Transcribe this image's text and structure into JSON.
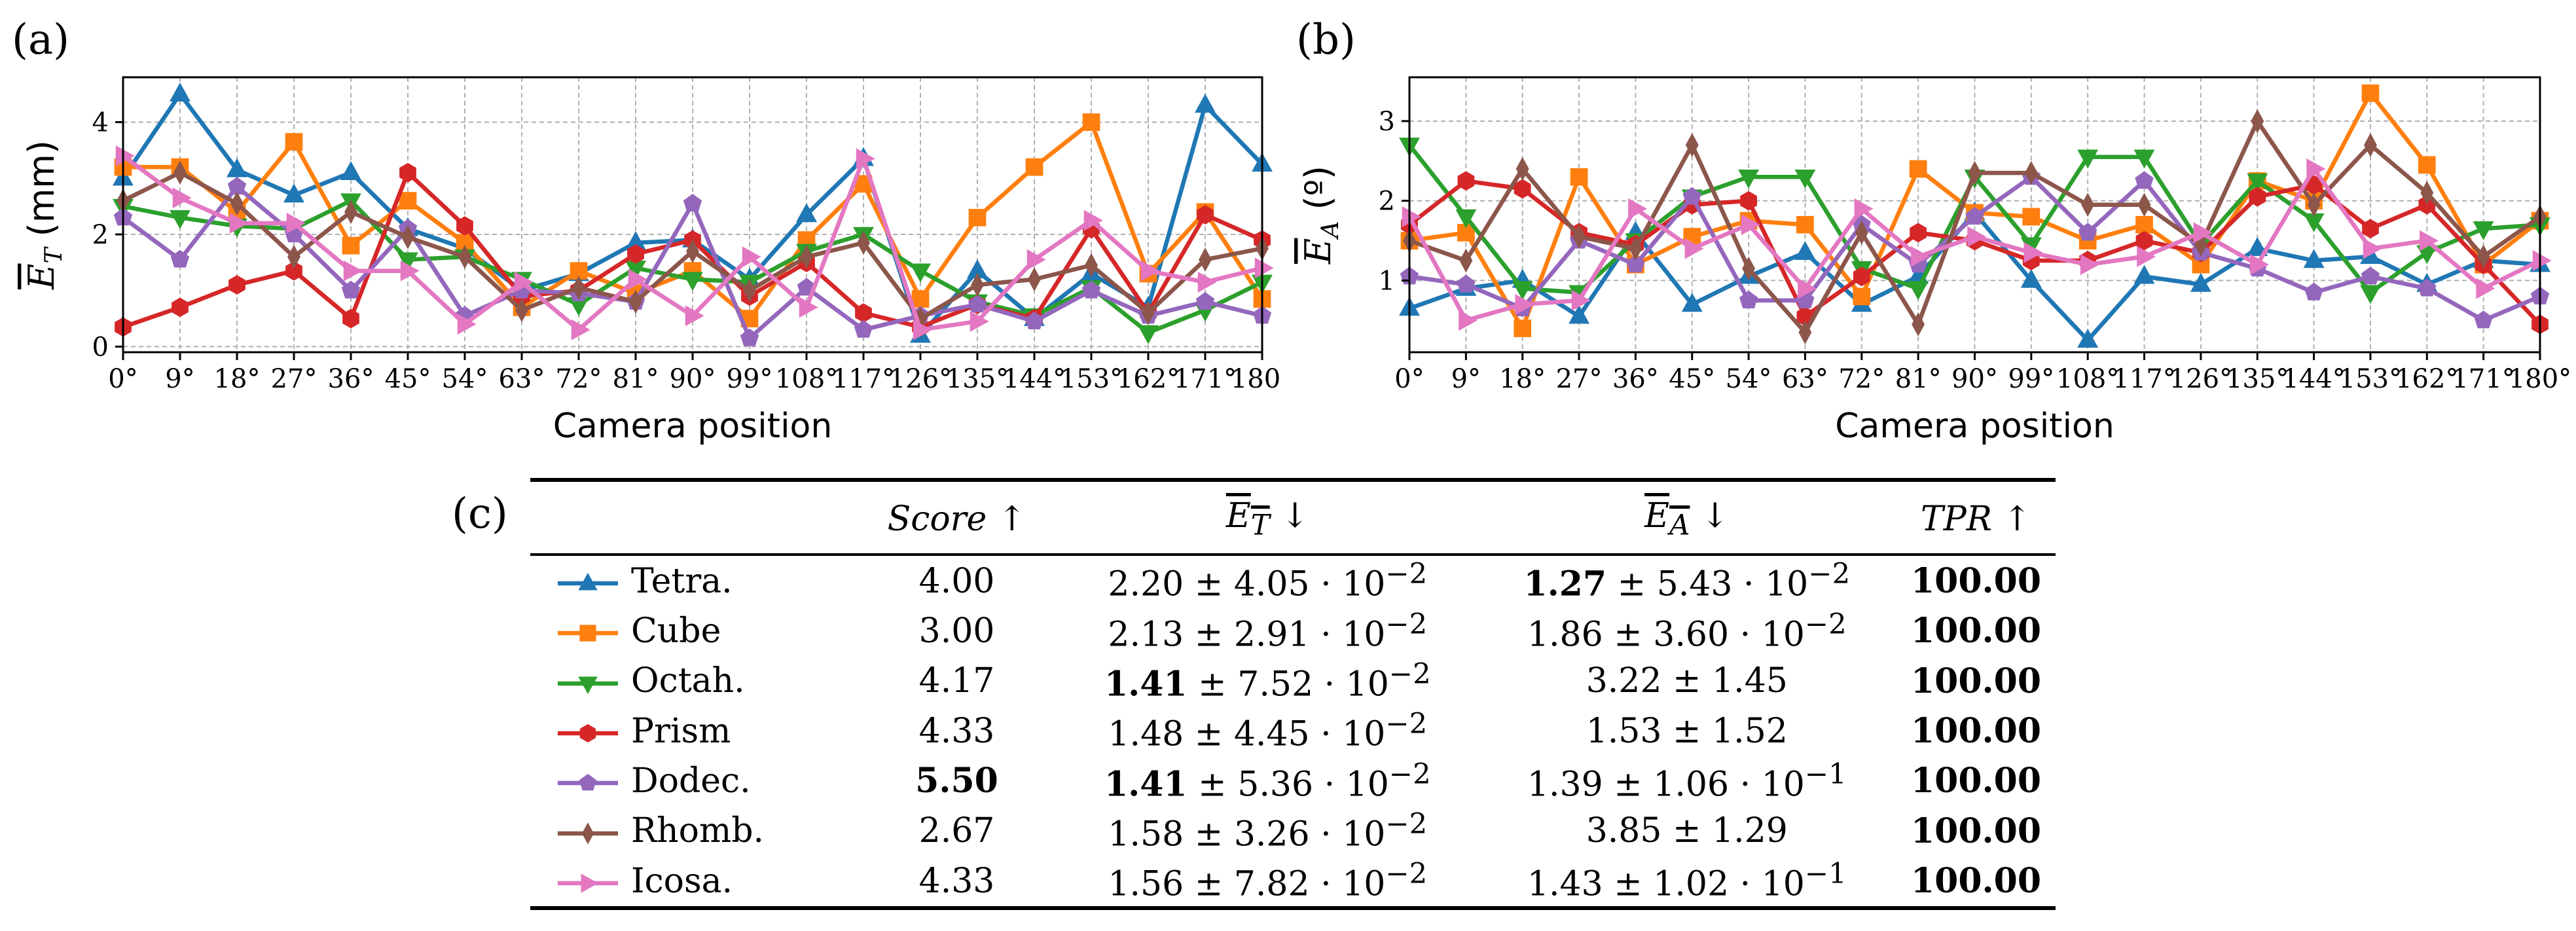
{
  "panel_labels": {
    "a": "(a)",
    "b": "(b)",
    "c": "(c)"
  },
  "chart_data": [
    {
      "type": "line",
      "id": "a",
      "xlabel": "Camera position",
      "ylabel": "E_T (mm)",
      "ylabel_main": "E",
      "ylabel_sub": "T",
      "ylabel_unit": " (mm)",
      "ylim": [
        -0.1,
        4.8
      ],
      "yticks": [
        "0",
        "2",
        "4"
      ],
      "ytick_values": [
        0,
        2,
        4
      ],
      "xlim": [
        0,
        180
      ],
      "xticks": [
        "0°",
        "9°",
        "18°",
        "27°",
        "36°",
        "45°",
        "54°",
        "63°",
        "72°",
        "81°",
        "90°",
        "99°",
        "108°",
        "117°",
        "126°",
        "135°",
        "144°",
        "153°",
        "162°",
        "171°",
        "180°"
      ],
      "x": [
        0,
        9,
        18,
        27,
        36,
        45,
        54,
        63,
        72,
        81,
        90,
        99,
        108,
        117,
        126,
        135,
        144,
        153,
        162,
        171,
        180
      ],
      "grid": true,
      "series": [
        {
          "name": "Tetra.",
          "color": "#1f77b4",
          "marker": "triangle-up",
          "values": [
            3.0,
            4.5,
            3.15,
            2.7,
            3.1,
            2.1,
            1.75,
            1.0,
            1.3,
            1.85,
            1.9,
            1.2,
            2.35,
            3.35,
            0.2,
            1.35,
            0.5,
            1.3,
            0.7,
            4.3,
            3.25
          ]
        },
        {
          "name": "Cube",
          "color": "#ff7f0e",
          "marker": "square",
          "values": [
            3.2,
            3.2,
            2.4,
            3.65,
            1.8,
            2.6,
            1.85,
            0.7,
            1.35,
            0.95,
            1.35,
            0.5,
            1.9,
            2.9,
            0.85,
            2.3,
            3.2,
            4.0,
            1.3,
            2.4,
            0.85
          ]
        },
        {
          "name": "Octah.",
          "color": "#2ca02c",
          "marker": "triangle-down",
          "values": [
            2.5,
            2.3,
            2.15,
            2.1,
            2.6,
            1.55,
            1.6,
            1.2,
            0.75,
            1.4,
            1.2,
            1.15,
            1.7,
            2.0,
            1.35,
            0.8,
            0.55,
            1.05,
            0.25,
            0.65,
            1.15
          ]
        },
        {
          "name": "Prism",
          "color": "#d62728",
          "marker": "hexagon",
          "values": [
            0.35,
            0.7,
            1.1,
            1.35,
            0.5,
            3.1,
            2.15,
            0.9,
            1.0,
            1.65,
            1.9,
            0.9,
            1.5,
            0.6,
            0.35,
            0.75,
            0.5,
            2.1,
            0.6,
            2.35,
            1.9
          ]
        },
        {
          "name": "Dodec.",
          "color": "#9467bd",
          "marker": "pentagon",
          "values": [
            2.3,
            1.55,
            2.85,
            2.0,
            1.0,
            2.1,
            0.55,
            1.0,
            0.95,
            0.8,
            2.55,
            0.15,
            1.05,
            0.3,
            0.55,
            0.75,
            0.45,
            1.0,
            0.55,
            0.8,
            0.55
          ]
        },
        {
          "name": "Rhomb.",
          "color": "#8c564b",
          "marker": "thin-diamond",
          "values": [
            2.6,
            3.1,
            2.55,
            1.6,
            2.4,
            1.95,
            1.6,
            0.65,
            1.05,
            0.8,
            1.7,
            1.0,
            1.6,
            1.85,
            0.5,
            1.1,
            1.2,
            1.45,
            0.6,
            1.55,
            1.75
          ]
        },
        {
          "name": "Icosa.",
          "color": "#e377c2",
          "marker": "triangle-right",
          "values": [
            3.4,
            2.65,
            2.2,
            2.2,
            1.35,
            1.35,
            0.4,
            1.15,
            0.3,
            1.2,
            0.55,
            1.6,
            0.7,
            3.35,
            0.3,
            0.45,
            1.55,
            2.25,
            1.35,
            1.15,
            1.4
          ]
        }
      ]
    },
    {
      "type": "line",
      "id": "b",
      "xlabel": "Camera position",
      "ylabel": "E_A (º)",
      "ylabel_main": "E",
      "ylabel_sub": "A",
      "ylabel_unit": " (º)",
      "ylim": [
        0.1,
        3.55
      ],
      "yticks": [
        "1",
        "2",
        "3"
      ],
      "ytick_values": [
        1,
        2,
        3
      ],
      "xlim": [
        0,
        180
      ],
      "xticks": [
        "0°",
        "9°",
        "18°",
        "27°",
        "36°",
        "45°",
        "54°",
        "63°",
        "72°",
        "81°",
        "90°",
        "99°",
        "108°",
        "117°",
        "126°",
        "135°",
        "144°",
        "153°",
        "162°",
        "171°",
        "180°"
      ],
      "x": [
        0,
        9,
        18,
        27,
        36,
        45,
        54,
        63,
        72,
        81,
        90,
        99,
        108,
        117,
        126,
        135,
        144,
        153,
        162,
        171,
        180
      ],
      "grid": true,
      "series": [
        {
          "name": "Tetra.",
          "color": "#1f77b4",
          "marker": "triangle-up",
          "values": [
            0.65,
            0.9,
            1.0,
            0.55,
            1.6,
            0.7,
            1.05,
            1.35,
            0.7,
            1.05,
            1.85,
            1.0,
            0.25,
            1.05,
            0.95,
            1.4,
            1.25,
            1.3,
            0.95,
            1.25,
            1.2
          ]
        },
        {
          "name": "Cube",
          "color": "#ff7f0e",
          "marker": "square",
          "values": [
            1.5,
            1.6,
            0.4,
            2.3,
            1.2,
            1.55,
            1.75,
            1.7,
            0.8,
            2.4,
            1.85,
            1.8,
            1.5,
            1.7,
            1.2,
            2.25,
            2.0,
            3.35,
            2.45,
            1.2,
            1.75
          ]
        },
        {
          "name": "Octah.",
          "color": "#2ca02c",
          "marker": "triangle-down",
          "values": [
            2.7,
            1.8,
            0.9,
            0.85,
            1.5,
            2.05,
            2.3,
            2.3,
            1.15,
            0.9,
            2.3,
            1.45,
            2.55,
            2.55,
            1.45,
            2.25,
            1.75,
            0.85,
            1.35,
            1.65,
            1.7
          ]
        },
        {
          "name": "Prism",
          "color": "#d62728",
          "marker": "hexagon",
          "values": [
            1.7,
            2.25,
            2.15,
            1.6,
            1.45,
            1.95,
            2.0,
            0.55,
            1.05,
            1.6,
            1.5,
            1.25,
            1.25,
            1.5,
            1.35,
            2.05,
            2.2,
            1.65,
            1.95,
            1.2,
            0.45
          ]
        },
        {
          "name": "Dodec.",
          "color": "#9467bd",
          "marker": "pentagon",
          "values": [
            1.05,
            0.95,
            0.65,
            1.5,
            1.2,
            2.05,
            0.75,
            0.75,
            1.7,
            1.2,
            1.8,
            2.3,
            1.6,
            2.25,
            1.35,
            1.15,
            0.85,
            1.05,
            0.9,
            0.5,
            0.8
          ]
        },
        {
          "name": "Rhomb.",
          "color": "#8c564b",
          "marker": "thin-diamond",
          "values": [
            1.5,
            1.25,
            2.4,
            1.55,
            1.4,
            2.7,
            1.15,
            0.35,
            1.6,
            0.45,
            2.35,
            2.35,
            1.95,
            1.95,
            1.45,
            3.0,
            1.95,
            2.7,
            2.1,
            1.3,
            1.8
          ]
        },
        {
          "name": "Icosa.",
          "color": "#e377c2",
          "marker": "triangle-right",
          "values": [
            1.8,
            0.5,
            0.7,
            0.75,
            1.9,
            1.4,
            1.7,
            0.9,
            1.9,
            1.3,
            1.55,
            1.35,
            1.2,
            1.3,
            1.6,
            1.2,
            2.4,
            1.4,
            1.5,
            0.9,
            1.25
          ]
        }
      ]
    }
  ],
  "table": {
    "headers": {
      "score": "Score",
      "et_main": "E",
      "et_sub": "T",
      "ea_main": "E",
      "ea_sub": "A",
      "tpr": "TPR",
      "up": "↑",
      "down": "↓"
    },
    "rows": [
      {
        "name": "Tetra.",
        "score": "4.00",
        "score_bold": false,
        "et_mean": "2.20",
        "et_mean_bold": false,
        "et_std": "± 4.05 · 10",
        "et_exp": "−2",
        "ea_mean": "1.27",
        "ea_mean_bold": true,
        "ea_std": "± 5.43 · 10",
        "ea_exp": "−2",
        "tpr": "100.00"
      },
      {
        "name": "Cube",
        "score": "3.00",
        "score_bold": false,
        "et_mean": "2.13",
        "et_mean_bold": false,
        "et_std": "± 2.91 · 10",
        "et_exp": "−2",
        "ea_mean": "1.86",
        "ea_mean_bold": false,
        "ea_std": "± 3.60 · 10",
        "ea_exp": "−2",
        "tpr": "100.00"
      },
      {
        "name": "Octah.",
        "score": "4.17",
        "score_bold": false,
        "et_mean": "1.41",
        "et_mean_bold": true,
        "et_std": "± 7.52 · 10",
        "et_exp": "−2",
        "ea_mean": "3.22",
        "ea_mean_bold": false,
        "ea_std": "± 1.45",
        "ea_exp": "",
        "tpr": "100.00"
      },
      {
        "name": "Prism",
        "score": "4.33",
        "score_bold": false,
        "et_mean": "1.48",
        "et_mean_bold": false,
        "et_std": "± 4.45 · 10",
        "et_exp": "−2",
        "ea_mean": "1.53",
        "ea_mean_bold": false,
        "ea_std": "± 1.52",
        "ea_exp": "",
        "tpr": "100.00"
      },
      {
        "name": "Dodec.",
        "score": "5.50",
        "score_bold": true,
        "et_mean": "1.41",
        "et_mean_bold": true,
        "et_std": "± 5.36 · 10",
        "et_exp": "−2",
        "ea_mean": "1.39",
        "ea_mean_bold": false,
        "ea_std": "± 1.06 · 10",
        "ea_exp": "−1",
        "tpr": "100.00"
      },
      {
        "name": "Rhomb.",
        "score": "2.67",
        "score_bold": false,
        "et_mean": "1.58",
        "et_mean_bold": false,
        "et_std": "± 3.26 · 10",
        "et_exp": "−2",
        "ea_mean": "3.85",
        "ea_mean_bold": false,
        "ea_std": "± 1.29",
        "ea_exp": "",
        "tpr": "100.00"
      },
      {
        "name": "Icosa.",
        "score": "4.33",
        "score_bold": false,
        "et_mean": "1.56",
        "et_mean_bold": false,
        "et_std": "± 7.82 · 10",
        "et_exp": "−2",
        "ea_mean": "1.43",
        "ea_mean_bold": false,
        "ea_std": "± 1.02 · 10",
        "ea_exp": "−1",
        "tpr": "100.00"
      }
    ]
  }
}
